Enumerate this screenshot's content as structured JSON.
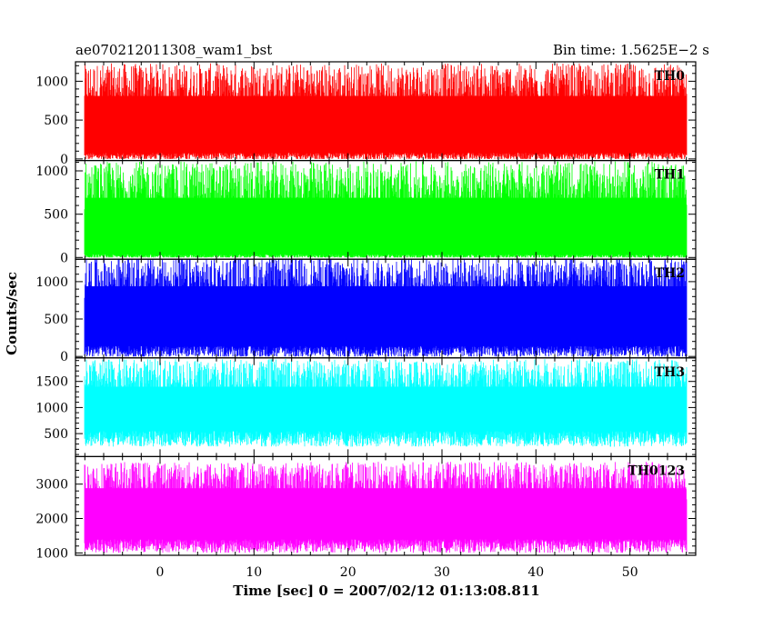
{
  "chart_data": {
    "type": "line",
    "title": "ae070212011308_wam1_bst",
    "subtitle": "Bin time: 1.5625E−2 s",
    "xlabel": "Time [sec] 0 = 2007/02/12 01:13:08.811",
    "ylabel": "Counts/sec",
    "xlim": [
      -9,
      57
    ],
    "data_x_range": [
      -8,
      56
    ],
    "xticks": [
      0,
      10,
      20,
      30,
      40,
      50
    ],
    "xtick_labels": [
      "0",
      "10",
      "20",
      "30",
      "40",
      "50"
    ],
    "panels": [
      {
        "name": "TH0",
        "color": "#ff0000",
        "ylim": [
          -20,
          1250
        ],
        "yticks": [
          0,
          500,
          1000
        ],
        "ytick_labels": [
          "0",
          "500",
          "1000"
        ],
        "baseline": 0,
        "low_mean": 30,
        "low_var": 50,
        "high_mean": 930,
        "high_var": 300,
        "min": 0,
        "max": 1250
      },
      {
        "name": "TH1",
        "color": "#00ff00",
        "ylim": [
          -20,
          1120
        ],
        "yticks": [
          0,
          500,
          1000
        ],
        "ytick_labels": [
          "0",
          "500",
          "1000"
        ],
        "baseline": 0,
        "low_mean": 10,
        "low_var": 25,
        "high_mean": 810,
        "high_var": 300,
        "min": 0,
        "max": 1120
      },
      {
        "name": "TH2",
        "color": "#0000ff",
        "ylim": [
          -20,
          1300
        ],
        "yticks": [
          0,
          500,
          1000
        ],
        "ytick_labels": [
          "0",
          "500",
          "1000"
        ],
        "baseline": 0,
        "low_mean": 60,
        "low_var": 80,
        "high_mean": 1050,
        "high_var": 280,
        "min": 0,
        "max": 1300
      },
      {
        "name": "TH3",
        "color": "#00ffff",
        "ylim": [
          60,
          1950
        ],
        "yticks": [
          500,
          1000,
          1500
        ],
        "ytick_labels": [
          "500",
          "1000",
          "1500"
        ],
        "baseline": 60,
        "low_mean": 400,
        "low_var": 150,
        "high_mean": 1550,
        "high_var": 380,
        "min": 100,
        "max": 1950
      },
      {
        "name": "TH0123",
        "color": "#ff00ff",
        "ylim": [
          930,
          3800
        ],
        "yticks": [
          1000,
          2000,
          3000
        ],
        "ytick_labels": [
          "1000",
          "2000",
          "3000"
        ],
        "baseline": 930,
        "low_mean": 1200,
        "low_var": 200,
        "high_mean": 3100,
        "high_var": 550,
        "min": 930,
        "max": 3800
      }
    ]
  }
}
